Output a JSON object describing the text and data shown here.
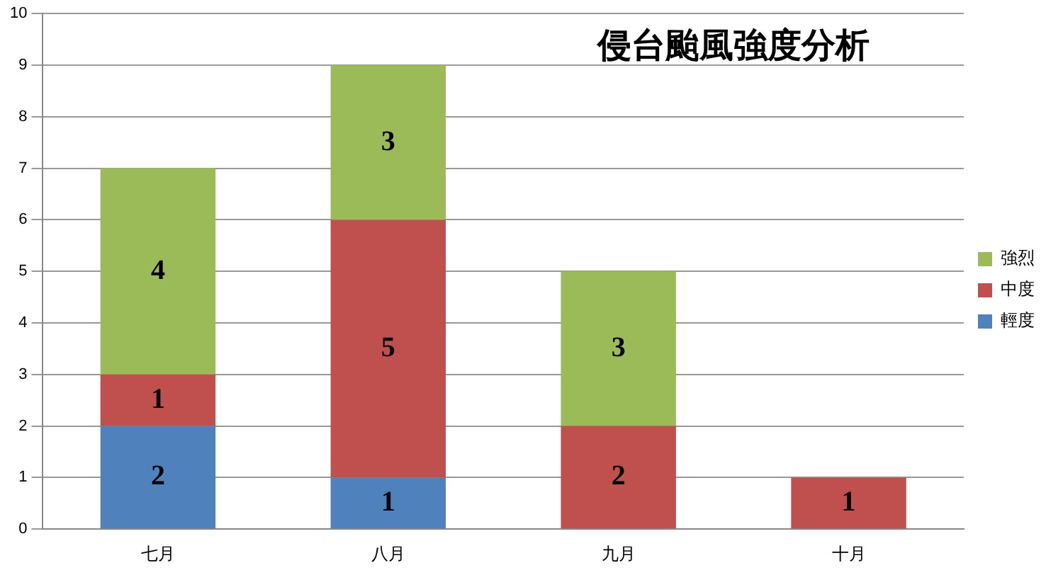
{
  "chart_data": {
    "type": "bar",
    "title": "侵台颱風強度分析",
    "stacked": true,
    "categories": [
      "七月",
      "八月",
      "九月",
      "十月"
    ],
    "series": [
      {
        "name": "輕度",
        "color": "#4f81bd",
        "values": [
          2,
          1,
          0,
          0
        ],
        "value_labels": [
          "2",
          "1",
          null,
          null
        ]
      },
      {
        "name": "中度",
        "color": "#c0504d",
        "values": [
          1,
          5,
          2,
          1
        ],
        "value_labels": [
          "1",
          "5",
          "2",
          "1"
        ]
      },
      {
        "name": "強烈",
        "color": "#9bbb59",
        "values": [
          4,
          3,
          3,
          0
        ],
        "value_labels": [
          "4",
          "3",
          "3",
          null
        ]
      }
    ],
    "ylim": [
      0,
      10
    ],
    "yticks": [
      0,
      1,
      2,
      3,
      4,
      5,
      6,
      7,
      8,
      9,
      10
    ],
    "grid": "y",
    "legend": "right"
  }
}
